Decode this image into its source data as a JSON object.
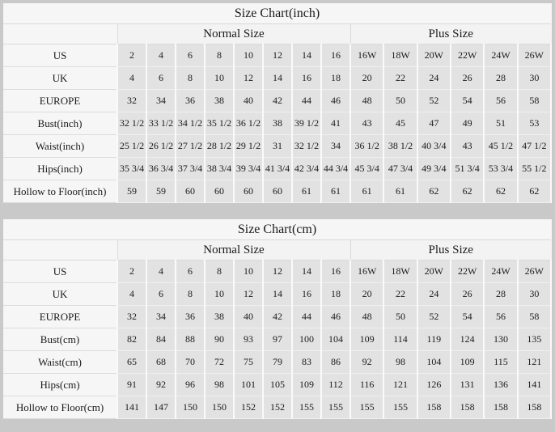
{
  "colors": {
    "page_background": "#c9c9c9",
    "header_background": "#f6f6f6",
    "cell_background": "#e2e2e2",
    "text": "#1b1b1b",
    "grid_line": "#fafafa"
  },
  "tables": [
    {
      "title": "Size Chart(inch)",
      "group_headers": {
        "normal": "Normal Size",
        "plus": "Plus Size"
      },
      "rows": [
        {
          "label": "US",
          "values": [
            "2",
            "4",
            "6",
            "8",
            "10",
            "12",
            "14",
            "16",
            "16W",
            "18W",
            "20W",
            "22W",
            "24W",
            "26W"
          ]
        },
        {
          "label": "UK",
          "values": [
            "4",
            "6",
            "8",
            "10",
            "12",
            "14",
            "16",
            "18",
            "20",
            "22",
            "24",
            "26",
            "28",
            "30"
          ]
        },
        {
          "label": "EUROPE",
          "values": [
            "32",
            "34",
            "36",
            "38",
            "40",
            "42",
            "44",
            "46",
            "48",
            "50",
            "52",
            "54",
            "56",
            "58"
          ]
        },
        {
          "label": "Bust(inch)",
          "values": [
            "32 1/2",
            "33 1/2",
            "34 1/2",
            "35 1/2",
            "36 1/2",
            "38",
            "39 1/2",
            "41",
            "43",
            "45",
            "47",
            "49",
            "51",
            "53"
          ]
        },
        {
          "label": "Waist(inch)",
          "values": [
            "25 1/2",
            "26 1/2",
            "27 1/2",
            "28 1/2",
            "29 1/2",
            "31",
            "32 1/2",
            "34",
            "36 1/2",
            "38 1/2",
            "40 3/4",
            "43",
            "45 1/2",
            "47 1/2"
          ]
        },
        {
          "label": "Hips(inch)",
          "values": [
            "35 3/4",
            "36 3/4",
            "37 3/4",
            "38 3/4",
            "39 3/4",
            "41 3/4",
            "42 3/4",
            "44 3/4",
            "45 3/4",
            "47 3/4",
            "49 3/4",
            "51 3/4",
            "53 3/4",
            "55 1/2"
          ]
        },
        {
          "label": "Hollow to Floor(inch)",
          "values": [
            "59",
            "59",
            "60",
            "60",
            "60",
            "60",
            "61",
            "61",
            "61",
            "61",
            "62",
            "62",
            "62",
            "62"
          ]
        }
      ]
    },
    {
      "title": "Size Chart(cm)",
      "group_headers": {
        "normal": "Normal Size",
        "plus": "Plus Size"
      },
      "rows": [
        {
          "label": "US",
          "values": [
            "2",
            "4",
            "6",
            "8",
            "10",
            "12",
            "14",
            "16",
            "16W",
            "18W",
            "20W",
            "22W",
            "24W",
            "26W"
          ]
        },
        {
          "label": "UK",
          "values": [
            "4",
            "6",
            "8",
            "10",
            "12",
            "14",
            "16",
            "18",
            "20",
            "22",
            "24",
            "26",
            "28",
            "30"
          ]
        },
        {
          "label": "EUROPE",
          "values": [
            "32",
            "34",
            "36",
            "38",
            "40",
            "42",
            "44",
            "46",
            "48",
            "50",
            "52",
            "54",
            "56",
            "58"
          ]
        },
        {
          "label": "Bust(cm)",
          "values": [
            "82",
            "84",
            "88",
            "90",
            "93",
            "97",
            "100",
            "104",
            "109",
            "114",
            "119",
            "124",
            "130",
            "135"
          ]
        },
        {
          "label": "Waist(cm)",
          "values": [
            "65",
            "68",
            "70",
            "72",
            "75",
            "79",
            "83",
            "86",
            "92",
            "98",
            "104",
            "109",
            "115",
            "121"
          ]
        },
        {
          "label": "Hips(cm)",
          "values": [
            "91",
            "92",
            "96",
            "98",
            "101",
            "105",
            "109",
            "112",
            "116",
            "121",
            "126",
            "131",
            "136",
            "141"
          ]
        },
        {
          "label": "Hollow to Floor(cm)",
          "values": [
            "141",
            "147",
            "150",
            "150",
            "152",
            "152",
            "155",
            "155",
            "155",
            "155",
            "158",
            "158",
            "158",
            "158"
          ]
        }
      ]
    }
  ]
}
